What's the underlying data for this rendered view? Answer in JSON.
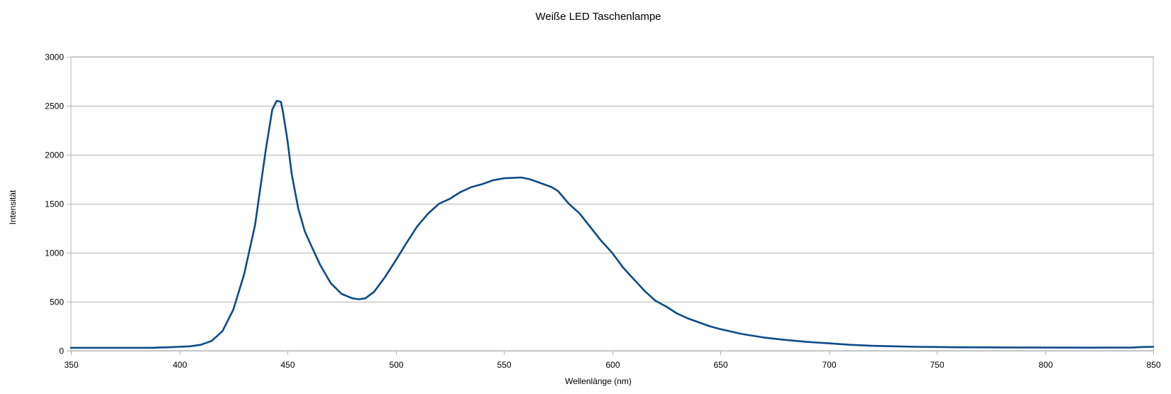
{
  "chart_data": {
    "type": "line",
    "title": "Weiße LED Taschenlampe",
    "xlabel": "Wellenlänge (nm)",
    "ylabel": "Intensität",
    "xlim": [
      350,
      850
    ],
    "ylim": [
      0,
      3000
    ],
    "x_ticks": [
      350,
      400,
      450,
      500,
      550,
      600,
      650,
      700,
      750,
      800,
      850
    ],
    "y_ticks": [
      0,
      500,
      1000,
      1500,
      2000,
      2500,
      3000
    ],
    "grid": "horizontal",
    "legend": "none",
    "colors": {
      "line": "#0d4a8a",
      "grid": "#b3b3b3",
      "axis": "#b3b3b3"
    },
    "series": [
      {
        "x": [
          350,
          360,
          370,
          380,
          388,
          390,
          395,
          400,
          405,
          410,
          415,
          420,
          425,
          430,
          435,
          440,
          443,
          445,
          447,
          448,
          450,
          452,
          455,
          458,
          460,
          465,
          470,
          475,
          480,
          483,
          486,
          490,
          495,
          500,
          505,
          510,
          515,
          520,
          525,
          530,
          535,
          540,
          545,
          550,
          555,
          558,
          562,
          567,
          572,
          575,
          580,
          585,
          590,
          595,
          600,
          605,
          610,
          615,
          620,
          625,
          630,
          635,
          640,
          645,
          650,
          660,
          670,
          680,
          690,
          700,
          710,
          720,
          730,
          740,
          750,
          760,
          780,
          800,
          820,
          840,
          845,
          850
        ],
        "y": [
          30,
          30,
          30,
          30,
          30,
          32,
          35,
          40,
          45,
          60,
          100,
          200,
          420,
          780,
          1280,
          2050,
          2460,
          2550,
          2540,
          2430,
          2150,
          1800,
          1450,
          1220,
          1120,
          880,
          690,
          580,
          535,
          525,
          535,
          600,
          750,
          920,
          1100,
          1270,
          1400,
          1500,
          1550,
          1620,
          1670,
          1700,
          1740,
          1760,
          1765,
          1768,
          1750,
          1710,
          1670,
          1630,
          1500,
          1400,
          1260,
          1120,
          1000,
          850,
          730,
          610,
          510,
          450,
          380,
          330,
          290,
          250,
          220,
          170,
          135,
          110,
          90,
          75,
          60,
          50,
          45,
          40,
          38,
          35,
          33,
          32,
          31,
          32,
          38,
          40
        ]
      }
    ]
  }
}
